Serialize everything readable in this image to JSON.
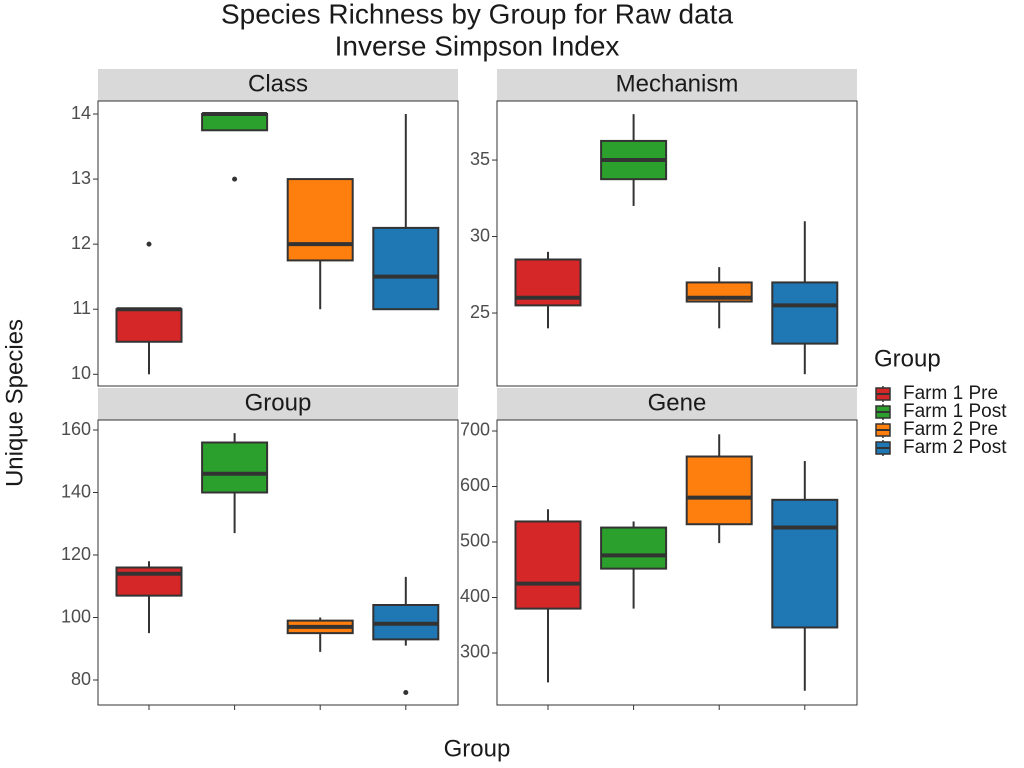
{
  "title": [
    "Species Richness by Group for Raw data",
    "Inverse Simpson Index"
  ],
  "x_label": "Group",
  "y_label": "Unique Species",
  "legend_title": "Group",
  "chart_data": [
    {
      "type": "box",
      "title": "Class",
      "ylim": [
        9.82,
        14.2
      ],
      "yticks": [
        10,
        11,
        12,
        13,
        14
      ],
      "series": [
        {
          "name": "Farm 1 Pre",
          "color": "#d62728",
          "whisker_low": 10,
          "q1": 10.5,
          "median": 11,
          "q3": 11,
          "whisker_high": 11,
          "outliers": [
            12
          ]
        },
        {
          "name": "Farm 1 Post",
          "color": "#2ca02c",
          "whisker_low": 13.75,
          "q1": 13.75,
          "median": 14,
          "q3": 14,
          "whisker_high": 14,
          "outliers": [
            13
          ]
        },
        {
          "name": "Farm 2 Pre",
          "color": "#ff7f0e",
          "whisker_low": 11,
          "q1": 11.75,
          "median": 12,
          "q3": 13,
          "whisker_high": 13
        },
        {
          "name": "Farm 2 Post",
          "color": "#1f77b4",
          "whisker_low": 11,
          "q1": 11,
          "median": 11.5,
          "q3": 12.25,
          "whisker_high": 14
        }
      ]
    },
    {
      "type": "box",
      "title": "Mechanism",
      "ylim": [
        20.23,
        38.86
      ],
      "yticks": [
        25,
        30,
        35
      ],
      "series": [
        {
          "name": "Farm 1 Pre",
          "color": "#d62728",
          "whisker_low": 24,
          "q1": 25.5,
          "median": 26,
          "q3": 28.5,
          "whisker_high": 29
        },
        {
          "name": "Farm 1 Post",
          "color": "#2ca02c",
          "whisker_low": 32,
          "q1": 33.75,
          "median": 35,
          "q3": 36.25,
          "whisker_high": 38
        },
        {
          "name": "Farm 2 Pre",
          "color": "#ff7f0e",
          "whisker_low": 24,
          "q1": 25.75,
          "median": 26,
          "q3": 27,
          "whisker_high": 28
        },
        {
          "name": "Farm 2 Post",
          "color": "#1f77b4",
          "whisker_low": 21,
          "q1": 23,
          "median": 25.5,
          "q3": 27,
          "whisker_high": 31
        }
      ]
    },
    {
      "type": "box",
      "title": "Group",
      "ylim": [
        72,
        163.2
      ],
      "yticks": [
        80,
        100,
        120,
        140,
        160
      ],
      "series": [
        {
          "name": "Farm 1 Pre",
          "color": "#d62728",
          "whisker_low": 95,
          "q1": 107,
          "median": 114,
          "q3": 116,
          "whisker_high": 118
        },
        {
          "name": "Farm 1 Post",
          "color": "#2ca02c",
          "whisker_low": 127,
          "q1": 140,
          "median": 146,
          "q3": 156,
          "whisker_high": 159
        },
        {
          "name": "Farm 2 Pre",
          "color": "#ff7f0e",
          "whisker_low": 89,
          "q1": 95,
          "median": 97,
          "q3": 99,
          "whisker_high": 100
        },
        {
          "name": "Farm 2 Post",
          "color": "#1f77b4",
          "whisker_low": 91,
          "q1": 93,
          "median": 98,
          "q3": 104,
          "whisker_high": 113,
          "outliers": [
            76
          ]
        }
      ]
    },
    {
      "type": "box",
      "title": "Gene",
      "ylim": [
        206.3,
        719.8
      ],
      "yticks": [
        300,
        400,
        500,
        600,
        700
      ],
      "series": [
        {
          "name": "Farm 1 Pre",
          "color": "#d62728",
          "whisker_low": 247,
          "q1": 380,
          "median": 425,
          "q3": 537,
          "whisker_high": 559
        },
        {
          "name": "Farm 1 Post",
          "color": "#2ca02c",
          "whisker_low": 380,
          "q1": 452,
          "median": 476,
          "q3": 526,
          "whisker_high": 537
        },
        {
          "name": "Farm 2 Pre",
          "color": "#ff7f0e",
          "whisker_low": 498,
          "q1": 532,
          "median": 580,
          "q3": 654,
          "whisker_high": 694
        },
        {
          "name": "Farm 2 Post",
          "color": "#1f77b4",
          "whisker_low": 232,
          "q1": 346,
          "median": 526,
          "q3": 576,
          "whisker_high": 646
        }
      ]
    }
  ]
}
